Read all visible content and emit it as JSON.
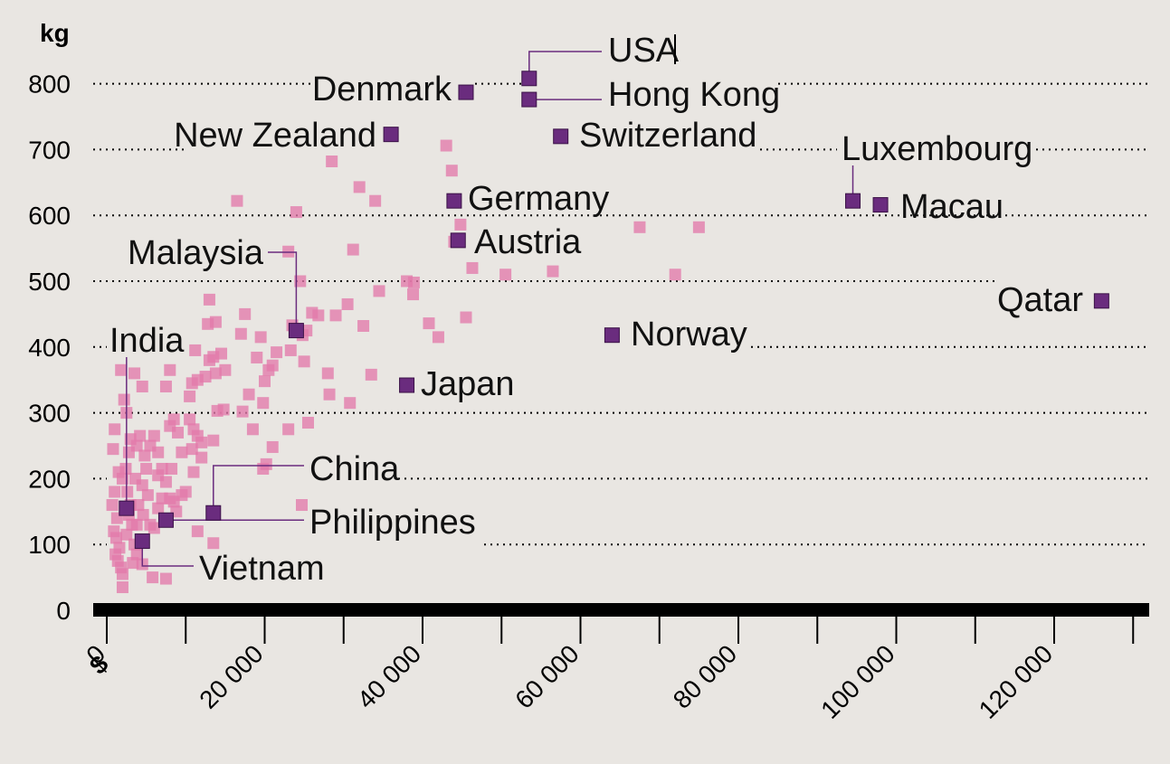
{
  "chart_data": {
    "type": "scatter",
    "ylabel": "kg",
    "x_currency_symbol": "$",
    "xlim": [
      0,
      130000
    ],
    "ylim": [
      0,
      800
    ],
    "x_ticks": [
      0,
      20000,
      40000,
      60000,
      80000,
      100000,
      120000
    ],
    "x_tick_labels": [
      "0",
      "20 000",
      "40 000",
      "60 000",
      "80 000",
      "100 000",
      "120 000"
    ],
    "y_ticks": [
      0,
      100,
      200,
      300,
      400,
      500,
      600,
      700,
      800
    ],
    "y_tick_labels": [
      "0",
      "100",
      "200",
      "300",
      "400",
      "500",
      "600",
      "700",
      "800"
    ],
    "grid": "horizontal dotted",
    "colors": {
      "background": "#e9e6e2",
      "other_countries": "#e37aaa",
      "highlighted": "#6a2c7e",
      "axis": "#000000"
    },
    "highlighted": [
      {
        "label": "USA",
        "x": 53500,
        "y": 808
      },
      {
        "label": "Hong Kong",
        "x": 53500,
        "y": 776
      },
      {
        "label": "Denmark",
        "x": 45500,
        "y": 787
      },
      {
        "label": "New Zealand",
        "x": 36000,
        "y": 723
      },
      {
        "label": "Switzerland",
        "x": 57500,
        "y": 720
      },
      {
        "label": "Luxembourg",
        "x": 94500,
        "y": 622
      },
      {
        "label": "Macau",
        "x": 98000,
        "y": 616
      },
      {
        "label": "Germany",
        "x": 44000,
        "y": 622
      },
      {
        "label": "Austria",
        "x": 44500,
        "y": 562
      },
      {
        "label": "Malaysia",
        "x": 24000,
        "y": 425
      },
      {
        "label": "Qatar",
        "x": 126000,
        "y": 470
      },
      {
        "label": "Norway",
        "x": 64000,
        "y": 418
      },
      {
        "label": "India",
        "x": 2500,
        "y": 155
      },
      {
        "label": "Japan",
        "x": 38000,
        "y": 342
      },
      {
        "label": "China",
        "x": 13500,
        "y": 148
      },
      {
        "label": "Philippines",
        "x": 7500,
        "y": 137
      },
      {
        "label": "Vietnam",
        "x": 4500,
        "y": 105
      }
    ],
    "other_points": [
      [
        1000,
        275
      ],
      [
        800,
        245
      ],
      [
        1500,
        210
      ],
      [
        1000,
        180
      ],
      [
        700,
        160
      ],
      [
        1300,
        140
      ],
      [
        900,
        120
      ],
      [
        1200,
        110
      ],
      [
        1600,
        95
      ],
      [
        1100,
        85
      ],
      [
        1400,
        75
      ],
      [
        1800,
        65
      ],
      [
        2000,
        55
      ],
      [
        2000,
        35
      ],
      [
        1800,
        365
      ],
      [
        2200,
        320
      ],
      [
        2500,
        300
      ],
      [
        3000,
        260
      ],
      [
        2800,
        240
      ],
      [
        2400,
        215
      ],
      [
        2000,
        200
      ],
      [
        2600,
        180
      ],
      [
        3000,
        160
      ],
      [
        2800,
        145
      ],
      [
        3200,
        130
      ],
      [
        2500,
        115
      ],
      [
        3500,
        100
      ],
      [
        3800,
        85
      ],
      [
        3300,
        72
      ],
      [
        4500,
        70
      ],
      [
        3500,
        360
      ],
      [
        4500,
        340
      ],
      [
        4200,
        265
      ],
      [
        3800,
        250
      ],
      [
        4800,
        235
      ],
      [
        5500,
        250
      ],
      [
        5000,
        215
      ],
      [
        4500,
        190
      ],
      [
        5200,
        175
      ],
      [
        3600,
        200
      ],
      [
        4000,
        160
      ],
      [
        4600,
        145
      ],
      [
        3800,
        130
      ],
      [
        5500,
        130
      ],
      [
        6000,
        125
      ],
      [
        5800,
        50
      ],
      [
        7500,
        48
      ],
      [
        6000,
        265
      ],
      [
        6500,
        240
      ],
      [
        7000,
        215
      ],
      [
        6500,
        205
      ],
      [
        7500,
        195
      ],
      [
        8000,
        170
      ],
      [
        7000,
        170
      ],
      [
        8500,
        165
      ],
      [
        8800,
        150
      ],
      [
        6500,
        155
      ],
      [
        7500,
        340
      ],
      [
        8000,
        365
      ],
      [
        8500,
        290
      ],
      [
        8000,
        280
      ],
      [
        9000,
        270
      ],
      [
        8200,
        215
      ],
      [
        9500,
        240
      ],
      [
        10000,
        180
      ],
      [
        9500,
        175
      ],
      [
        11500,
        120
      ],
      [
        13500,
        102
      ],
      [
        10500,
        290
      ],
      [
        11000,
        275
      ],
      [
        11500,
        265
      ],
      [
        12000,
        255
      ],
      [
        10800,
        245
      ],
      [
        12000,
        232
      ],
      [
        11000,
        210
      ],
      [
        10500,
        325
      ],
      [
        11500,
        350
      ],
      [
        10800,
        345
      ],
      [
        11200,
        395
      ],
      [
        12500,
        355
      ],
      [
        13000,
        380
      ],
      [
        13500,
        385
      ],
      [
        14500,
        390
      ],
      [
        15000,
        365
      ],
      [
        13800,
        360
      ],
      [
        12800,
        435
      ],
      [
        13000,
        472
      ],
      [
        13800,
        438
      ],
      [
        14000,
        303
      ],
      [
        14800,
        305
      ],
      [
        13500,
        258
      ],
      [
        16500,
        622
      ],
      [
        17000,
        420
      ],
      [
        17500,
        450
      ],
      [
        18000,
        328
      ],
      [
        17200,
        302
      ],
      [
        18500,
        275
      ],
      [
        19000,
        384
      ],
      [
        19500,
        415
      ],
      [
        20000,
        348
      ],
      [
        20500,
        365
      ],
      [
        21000,
        372
      ],
      [
        21500,
        392
      ],
      [
        19800,
        315
      ],
      [
        20200,
        222
      ],
      [
        21000,
        248
      ],
      [
        19800,
        215
      ],
      [
        23000,
        545
      ],
      [
        24000,
        605
      ],
      [
        24500,
        500
      ],
      [
        23500,
        433
      ],
      [
        23300,
        395
      ],
      [
        24800,
        418
      ],
      [
        25300,
        425
      ],
      [
        25000,
        378
      ],
      [
        23000,
        275
      ],
      [
        25500,
        285
      ],
      [
        24700,
        160
      ],
      [
        26000,
        452
      ],
      [
        26800,
        448
      ],
      [
        28000,
        360
      ],
      [
        28200,
        328
      ],
      [
        28500,
        682
      ],
      [
        29000,
        448
      ],
      [
        30500,
        465
      ],
      [
        30800,
        315
      ],
      [
        31200,
        548
      ],
      [
        32000,
        643
      ],
      [
        32500,
        432
      ],
      [
        33500,
        358
      ],
      [
        34000,
        622
      ],
      [
        34500,
        485
      ],
      [
        38000,
        500
      ],
      [
        38800,
        480
      ],
      [
        38900,
        498
      ],
      [
        40800,
        436
      ],
      [
        42000,
        415
      ],
      [
        43000,
        706
      ],
      [
        43700,
        668
      ],
      [
        44000,
        560
      ],
      [
        44800,
        586
      ],
      [
        45500,
        445
      ],
      [
        46300,
        520
      ],
      [
        50500,
        510
      ],
      [
        56500,
        515
      ],
      [
        67500,
        582
      ],
      [
        72000,
        510
      ],
      [
        75000,
        582
      ]
    ]
  }
}
